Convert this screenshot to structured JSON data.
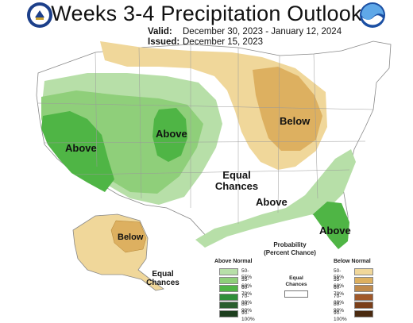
{
  "header": {
    "title": "Weeks 3-4 Precipitation Outlook",
    "valid_label": "Valid:",
    "valid_value": "December 30, 2023 - January 12, 2024",
    "issued_label": "Issued:",
    "issued_value": "December 15, 2023"
  },
  "map_labels": {
    "west_above": "Above",
    "central_above": "Above",
    "east_below": "Below",
    "equal_chances_1": "Equal",
    "equal_chances_2": "Chances",
    "southeast_above": "Above",
    "florida_above": "Above",
    "alaska_below": "Below",
    "alaska_equal_1": "Equal",
    "alaska_equal_2": "Chances"
  },
  "legend": {
    "title_1": "Probability",
    "title_2": "(Percent Chance)",
    "above_header": "Above Normal",
    "below_header": "Below Normal",
    "equal_1": "Equal",
    "equal_2": "Chances",
    "above": [
      {
        "label": "50-55%",
        "color": "#b7dfa8"
      },
      {
        "label": "55-60%",
        "color": "#8fcf7a"
      },
      {
        "label": "60-70%",
        "color": "#4fb545"
      },
      {
        "label": "70-80%",
        "color": "#2f8f3a"
      },
      {
        "label": "80-90%",
        "color": "#2a5e2e"
      },
      {
        "label": "90-100%",
        "color": "#1d3f1e"
      }
    ],
    "below": [
      {
        "label": "50-55%",
        "color": "#f0d79a"
      },
      {
        "label": "55-60%",
        "color": "#ddb060"
      },
      {
        "label": "60-70%",
        "color": "#c08a4c"
      },
      {
        "label": "70-80%",
        "color": "#a0582a"
      },
      {
        "label": "80-90%",
        "color": "#7a3f1a"
      },
      {
        "label": "90-100%",
        "color": "#4a2a10"
      }
    ]
  },
  "colors": {
    "above_light": "#b7dfa8",
    "above_mid": "#8fcf7a",
    "above_strong": "#4fb545",
    "below_light": "#f0d79a",
    "below_mid": "#ddb060"
  }
}
